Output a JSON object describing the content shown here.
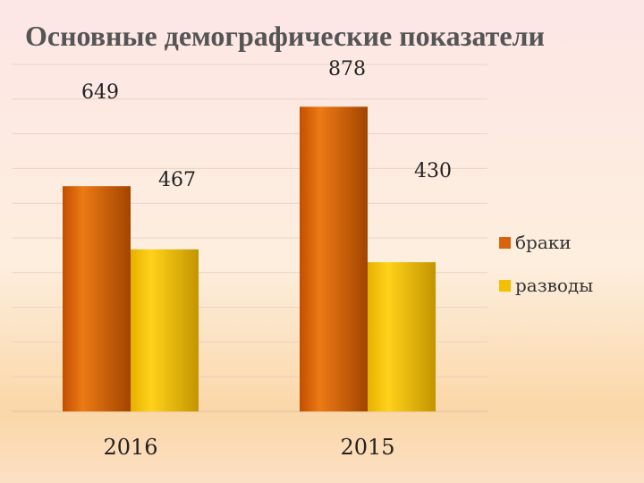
{
  "chart_data": {
    "type": "bar",
    "title": "Основные демографические показатели",
    "categories": [
      "2016",
      "2015"
    ],
    "series": [
      {
        "name": "браки",
        "values": [
          649,
          878
        ],
        "color": "#d9620a"
      },
      {
        "name": "разводы",
        "values": [
          467,
          430
        ],
        "color": "#f2c000"
      }
    ],
    "data_labels": [
      [
        "649",
        "467"
      ],
      [
        "878",
        "430"
      ]
    ],
    "ylim": [
      0,
      1000
    ],
    "grid": true,
    "legend": "right"
  }
}
